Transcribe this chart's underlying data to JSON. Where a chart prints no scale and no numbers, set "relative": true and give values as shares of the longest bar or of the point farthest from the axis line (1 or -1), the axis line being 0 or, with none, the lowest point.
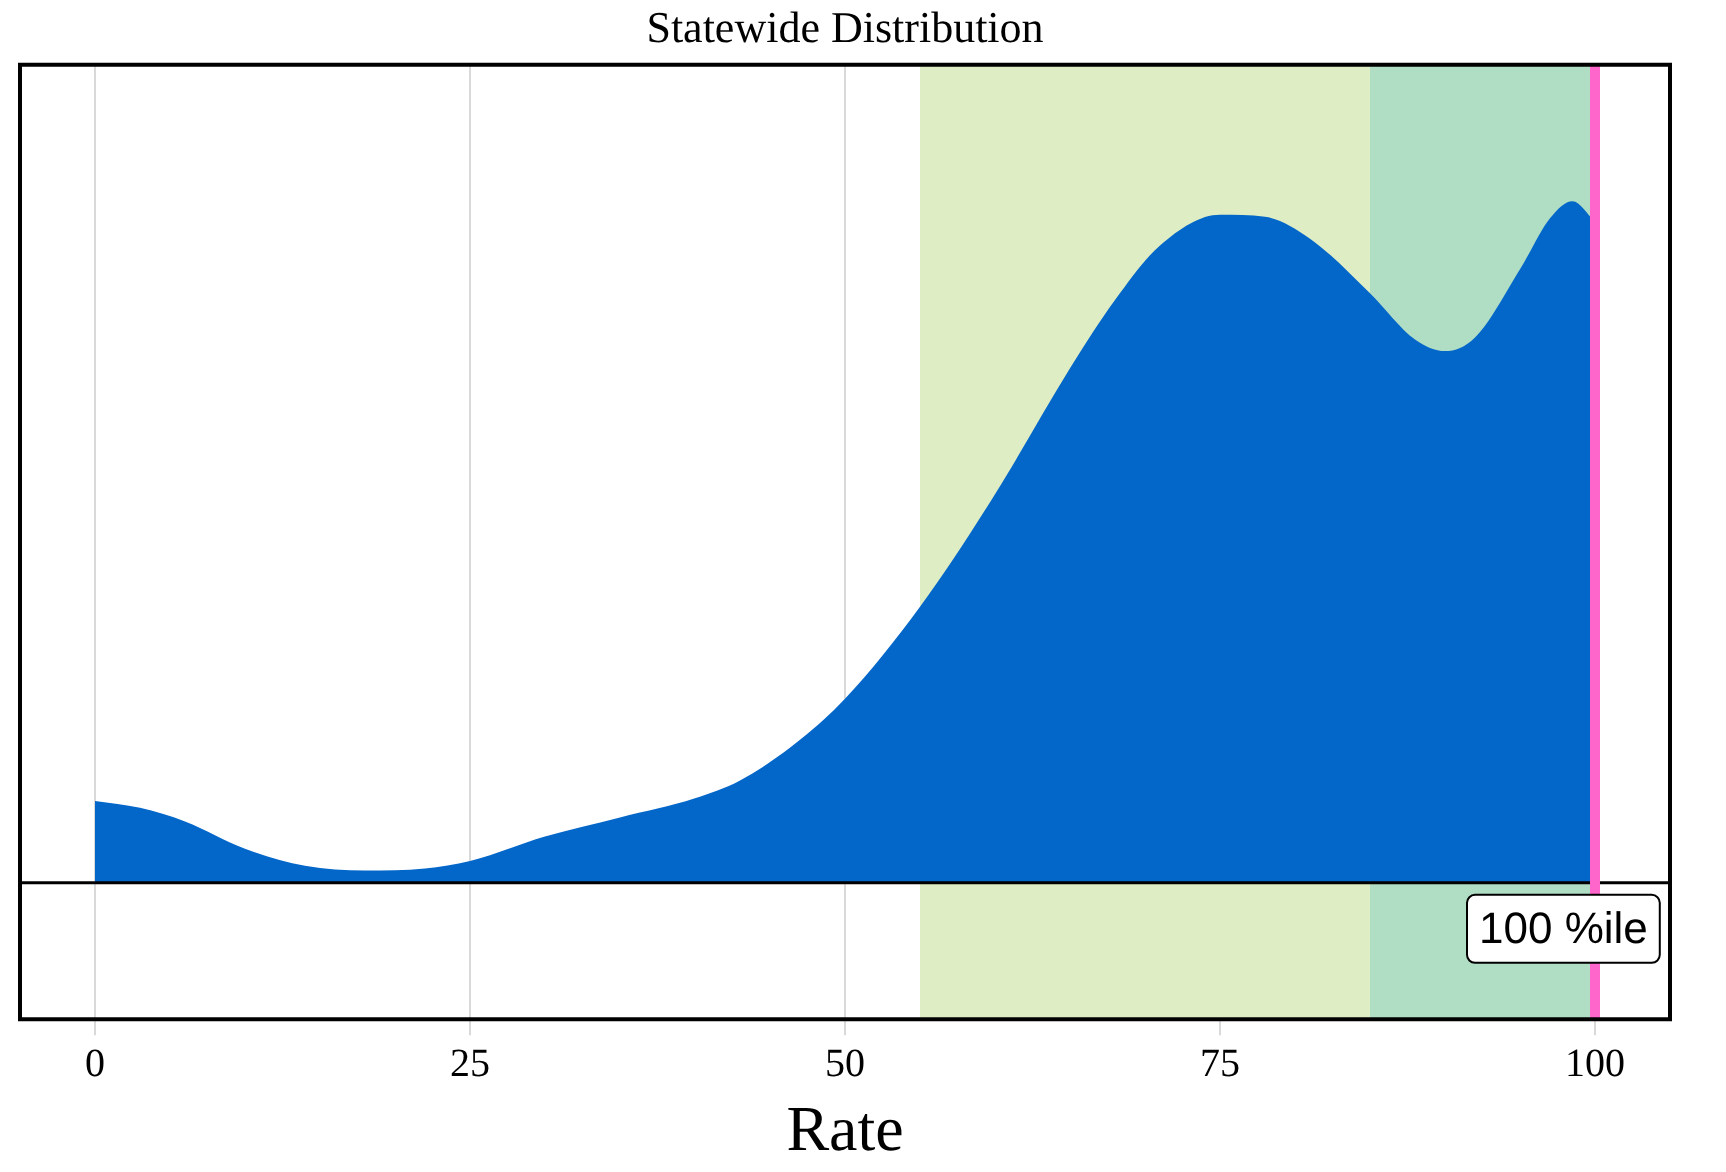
{
  "chart_data": {
    "type": "area",
    "title": "Statewide Distribution",
    "xlabel": "Rate",
    "relative": true,
    "x": [
      0,
      3,
      6,
      10,
      14,
      18,
      22,
      25,
      30,
      35,
      40,
      43,
      47,
      50,
      55,
      60,
      65,
      68,
      71,
      75,
      78,
      81,
      85,
      88,
      90,
      92,
      95,
      97,
      98.5,
      100
    ],
    "series": [
      {
        "color": "#0366c9",
        "values": [
          0.12,
          0.11,
          0.09,
          0.05,
          0.025,
          0.018,
          0.021,
          0.032,
          0.068,
          0.096,
          0.124,
          0.15,
          0.21,
          0.27,
          0.405,
          0.57,
          0.755,
          0.855,
          0.935,
          0.98,
          0.977,
          0.945,
          0.865,
          0.797,
          0.78,
          0.8,
          0.9,
          0.975,
          1,
          0.97
        ]
      }
    ],
    "xlim": [
      -5,
      105
    ],
    "xticks": [
      0,
      25,
      50,
      75,
      100
    ],
    "grid": "x",
    "bands": [
      {
        "axis": "x",
        "from": 55,
        "to": 85,
        "color": "#dfedc4"
      },
      {
        "axis": "x",
        "from": 85,
        "to": 100,
        "color": "#b0dec4"
      }
    ],
    "ref_lines": [
      {
        "axis": "x",
        "value": 100,
        "label": "100 %ile",
        "color": "#ff66cc"
      }
    ]
  }
}
